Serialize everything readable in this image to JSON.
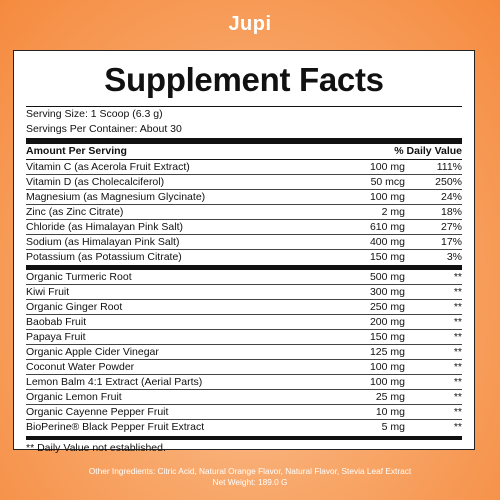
{
  "brand": "Jupi",
  "title": "Supplement Facts",
  "serving_size": "Serving Size: 1 Scoop (6.3 g)",
  "servings_per_container": "Servings Per Container: About 30",
  "header": {
    "amount": "Amount Per Serving",
    "dv": "% Daily Value"
  },
  "nutrients": [
    {
      "name": "Vitamin C (as Acerola Fruit Extract)",
      "amount": "100 mg",
      "dv": "111%"
    },
    {
      "name": "Vitamin D (as Cholecalciferol)",
      "amount": "50 mcg",
      "dv": "250%"
    },
    {
      "name": "Magnesium (as Magnesium Glycinate)",
      "amount": "100 mg",
      "dv": "24%"
    },
    {
      "name": "Zinc (as Zinc Citrate)",
      "amount": "2 mg",
      "dv": "18%"
    },
    {
      "name": "Chloride (as Himalayan Pink Salt)",
      "amount": "610 mg",
      "dv": "27%"
    },
    {
      "name": "Sodium (as Himalayan Pink Salt)",
      "amount": "400 mg",
      "dv": "17%"
    },
    {
      "name": "Potassium (as Potassium Citrate)",
      "amount": "150 mg",
      "dv": "3%"
    }
  ],
  "extras": [
    {
      "name": "Organic Turmeric Root",
      "amount": "500 mg",
      "dv": "**"
    },
    {
      "name": "Kiwi Fruit",
      "amount": "300 mg",
      "dv": "**"
    },
    {
      "name": "Organic Ginger Root",
      "amount": "250 mg",
      "dv": "**"
    },
    {
      "name": "Baobab Fruit",
      "amount": "200 mg",
      "dv": "**"
    },
    {
      "name": "Papaya Fruit",
      "amount": "150 mg",
      "dv": "**"
    },
    {
      "name": "Organic Apple Cider Vinegar",
      "amount": "125 mg",
      "dv": "**"
    },
    {
      "name": "Coconut Water Powder",
      "amount": "100 mg",
      "dv": "**"
    },
    {
      "name": "Lemon Balm 4:1 Extract (Aerial Parts)",
      "amount": "100 mg",
      "dv": "**"
    },
    {
      "name": "Organic Lemon Fruit",
      "amount": "25 mg",
      "dv": "**"
    },
    {
      "name": "Organic Cayenne Pepper Fruit",
      "amount": "10 mg",
      "dv": "**"
    },
    {
      "name": "BioPerine® Black Pepper Fruit Extract",
      "amount": "5 mg",
      "dv": "**"
    }
  ],
  "footnote": "** Daily Value not established.",
  "other_ingredients": "Other Ingredients: Citric Acid, Natural Orange Flavor, Natural Flavor, Stevia Leaf Extract",
  "net_weight": "Net Weight: 189.0 G",
  "colors": {
    "background": "#f58a3e",
    "panel": "#ffffff",
    "text": "#111111"
  }
}
